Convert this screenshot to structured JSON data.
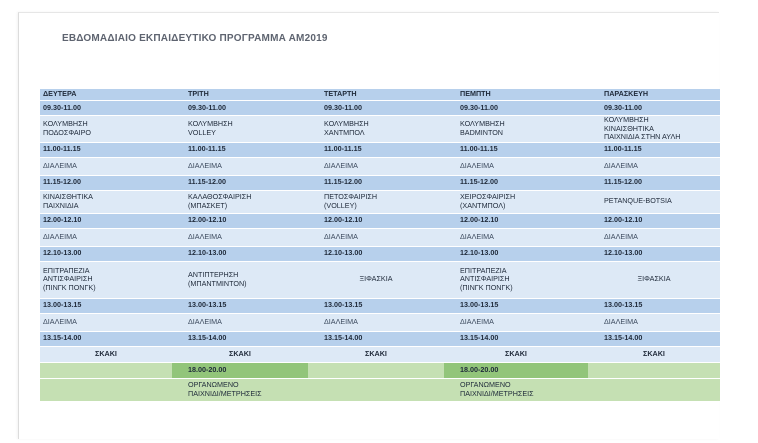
{
  "title": "ΕΒΔΟΜΑΔΙΑΙΟ ΕΚΠΑΙΔΕΥΤΙΚΟ ΠΡΟΓΡΑΜΜΑ ΑΜ2019",
  "days": [
    "ΔΕΥΤΕΡΑ",
    "ΤΡΙΤΗ",
    "ΤΕΤΑΡΤΗ",
    "ΠΕΜΠΤΗ",
    "ΠΑΡΑΣΚΕΥΗ"
  ],
  "rows": [
    {
      "type": "time",
      "cells": [
        "09.30-11.00",
        "09.30-11.00",
        "09.30-11.00",
        "09.30-11.00",
        "09.30-11.00"
      ]
    },
    {
      "type": "act",
      "cells": [
        [
          "ΚΟΛΥΜΒΗΣΗ",
          "ΠΟΔΟΣΦΑΙΡΟ"
        ],
        [
          "ΚΟΛΥΜΒΗΣΗ",
          "VOLLEY"
        ],
        [
          "ΚΟΛΥΜΒΗΣΗ",
          "ΧΑΝΤΜΠΟΛ"
        ],
        [
          "ΚΟΛΥΜΒΗΣΗ",
          "BADMINTON"
        ],
        [
          "ΚΟΛΥΜΒΗΣΗ",
          "ΚΙΝΑΙΣΘΗΤΙΚΑ",
          "ΠΑΙΧΝΙΔΙΑ ΣΤΗΝ ΑΥΛΗ"
        ]
      ]
    },
    {
      "type": "time",
      "cells": [
        "11.00-11.15",
        "11.00-11.15",
        "11.00-11.15",
        "11.00-11.15",
        "11.00-11.15"
      ]
    },
    {
      "type": "brk",
      "cells": [
        "ΔΙΑΛΕΙΜΑ",
        "ΔΙΑΛΕΙΜΑ",
        "ΔΙΑΛΕΙΜΑ",
        "ΔΙΑΛΕΙΜΑ",
        "ΔΙΑΛΕΙΜΑ"
      ]
    },
    {
      "type": "time",
      "cells": [
        "11.15-12.00",
        "11.15-12.00",
        "11.15-12.00",
        "11.15-12.00",
        "11.15-12.00"
      ]
    },
    {
      "type": "act",
      "cells": [
        [
          "ΚΙΝΑΙΣΘΗΤΙΚΑ",
          "ΠΑΙΧΝΙΔΙΑ"
        ],
        [
          "ΚΑΛΑΘΟΣΦΑΙΡΙΣΗ",
          "(ΜΠΑΣΚΕΤ)"
        ],
        [
          "ΠΕΤΟΣΦΑΙΡΙΣΗ",
          "(VOLLEY)"
        ],
        [
          "ΧΕΙΡΟΣΦΑΙΡΙΣΗ",
          "(ΧΑΝΤΜΠΟΛ)"
        ],
        [
          "PETANQUE-BOTSIA"
        ]
      ]
    },
    {
      "type": "time",
      "cells": [
        "12.00-12.10",
        "12.00-12.10",
        "12.00-12.10",
        "12.00-12.10",
        "12.00-12.10"
      ]
    },
    {
      "type": "brk",
      "cells": [
        "ΔΙΑΛΕΙΜΑ",
        "ΔΙΑΛΕΙΜΑ",
        "ΔΙΑΛΕΙΜΑ",
        "ΔΙΑΛΕΙΜΑ",
        "ΔΙΑΛΕΙΜΑ"
      ]
    },
    {
      "type": "time",
      "cells": [
        "12.10-13.00",
        "12.10-13.00",
        "12.10-13.00",
        "12.10-13.00",
        "12.10-13.00"
      ]
    },
    {
      "type": "act-tall",
      "cells": [
        [
          "ΕΠΙΤΡΑΠΕΖΙΑ",
          "ΑΝΤΙΣΦΑΙΡΙΣΗ",
          "(ΠΙΝΓΚ ΠΟΝΓΚ)"
        ],
        [
          "ΑΝΤΙΠΤΕΡΗΣΗ",
          "(ΜΠΑΝΤΜΙΝΤΟΝ)"
        ],
        [
          "ΞΙΦΑΣΚΙΑ"
        ],
        [
          "ΕΠΙΤΡΑΠΕΖΙΑ",
          "ΑΝΤΙΣΦΑΙΡΙΣΗ",
          "(ΠΙΝΓΚ ΠΟΝΓΚ)"
        ],
        [
          "ΞΙΦΑΣΚΙΑ"
        ]
      ]
    },
    {
      "type": "time",
      "cells": [
        "13.00-13.15",
        "13.00-13.15",
        "13.00-13.15",
        "13.00-13.15",
        "13.00-13.15"
      ]
    },
    {
      "type": "brk",
      "cells": [
        "ΔΙΑΛΕΙΜΑ",
        "ΔΙΑΛΕΙΜΑ",
        "ΔΙΑΛΕΙΜΑ",
        "ΔΙΑΛΕΙΜΑ",
        "ΔΙΑΛΕΙΜΑ"
      ]
    },
    {
      "type": "time",
      "cells": [
        "13.15-14.00",
        "13.15-14.00",
        "13.15-14.00",
        "13.15-14.00",
        "13.15-14.00"
      ]
    },
    {
      "type": "chess",
      "cells": [
        "ΣΚΑΚΙ",
        "ΣΚΑΚΙ",
        "ΣΚΑΚΙ",
        "ΣΚΑΚΙ",
        "ΣΚΑΚΙ"
      ]
    },
    {
      "type": "gtime",
      "cells": [
        "",
        "18.00-20.00",
        "",
        "18.00-20.00",
        ""
      ]
    },
    {
      "type": "gact",
      "cells": [
        [],
        [
          "ΟΡΓΑΝΩΜΕΝΟ",
          "ΠΑΙΧΝΙΔΙ/ΜΕΤΡΗΣΕΙΣ"
        ],
        [],
        [
          "ΟΡΓΑΝΩΜΕΝΟ",
          "ΠΑΙΧΝΙΔΙ/ΜΕΤΡΗΣΕΙΣ"
        ],
        []
      ]
    }
  ]
}
